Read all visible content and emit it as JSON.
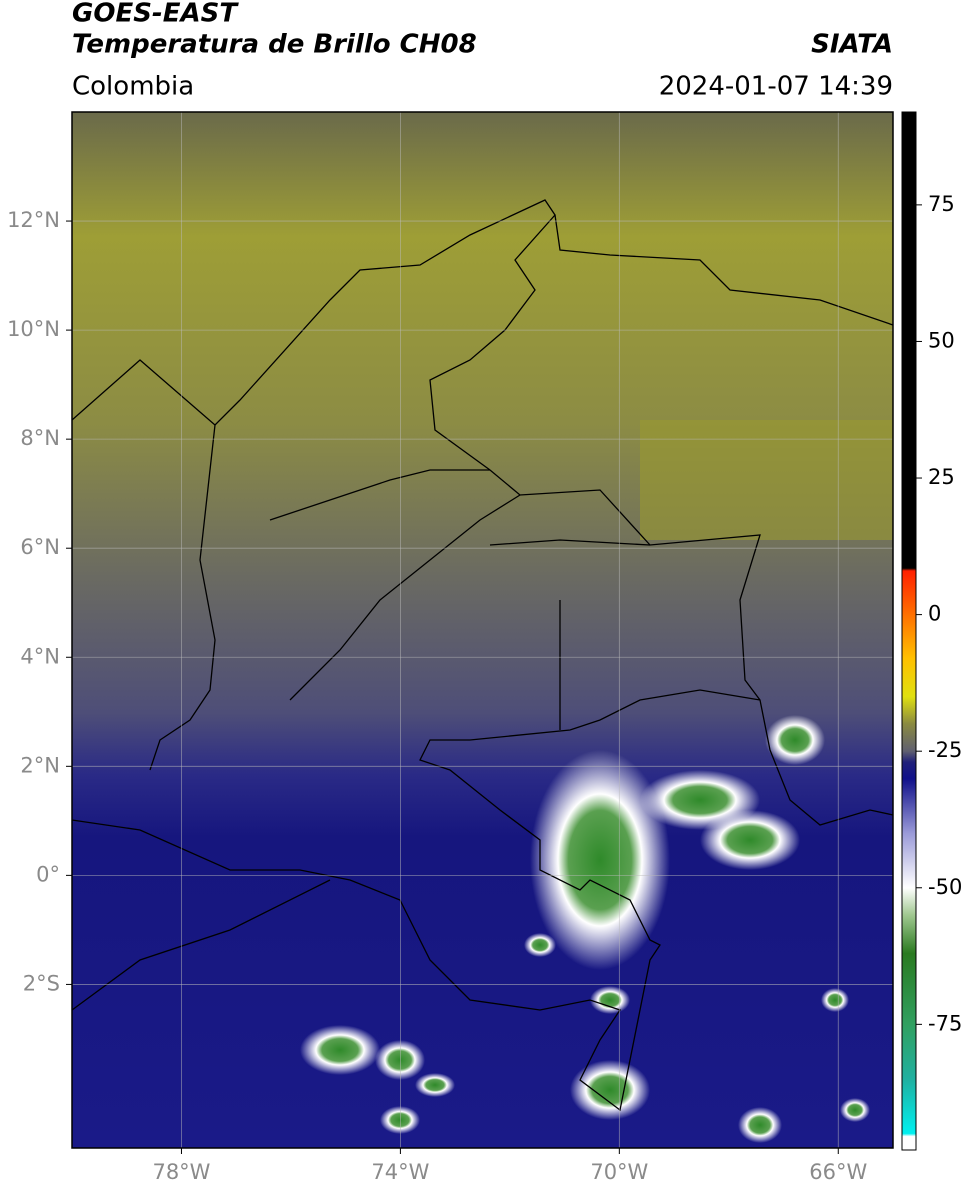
{
  "header": {
    "title": "GOES-EAST",
    "subtitle": "Temperatura de Brillo CH08",
    "brand": "SIATA",
    "region": "Colombia",
    "timestamp": "2024-01-07 14:39"
  },
  "map": {
    "xlim": [
      -80,
      -65
    ],
    "ylim": [
      -5,
      14
    ],
    "xticks": [
      {
        "value": -78,
        "label": "78°W"
      },
      {
        "value": -74,
        "label": "74°W"
      },
      {
        "value": -70,
        "label": "70°W"
      },
      {
        "value": -66,
        "label": "66°W"
      }
    ],
    "yticks": [
      {
        "value": 12,
        "label": "12°N"
      },
      {
        "value": 10,
        "label": "10°N"
      },
      {
        "value": 8,
        "label": "8°N"
      },
      {
        "value": 6,
        "label": "6°N"
      },
      {
        "value": 4,
        "label": "4°N"
      },
      {
        "value": 2,
        "label": "2°N"
      },
      {
        "value": 0,
        "label": "0°"
      },
      {
        "value": -2,
        "label": "2°S"
      }
    ],
    "grid": true
  },
  "colorbar": {
    "lim": [
      -98,
      92
    ],
    "ticks": [
      75,
      50,
      25,
      0,
      -25,
      -50,
      -75
    ],
    "stops": [
      {
        "value": -98,
        "color": "#ffffff"
      },
      {
        "value": -95.5,
        "color": "#ffffff"
      },
      {
        "value": -95,
        "color": "#00f0f0"
      },
      {
        "value": -85,
        "color": "#20b0a0"
      },
      {
        "value": -75,
        "color": "#30a060"
      },
      {
        "value": -62,
        "color": "#2a7a20"
      },
      {
        "value": -55,
        "color": "#a0c890"
      },
      {
        "value": -50,
        "color": "#ffffff"
      },
      {
        "value": -40,
        "color": "#9a9ad8"
      },
      {
        "value": -30,
        "color": "#10108a"
      },
      {
        "value": -27,
        "color": "#20207a"
      },
      {
        "value": -25,
        "color": "#606070"
      },
      {
        "value": -20,
        "color": "#8a8a40"
      },
      {
        "value": -15,
        "color": "#e0e010"
      },
      {
        "value": -8,
        "color": "#ffc000"
      },
      {
        "value": 0,
        "color": "#ff7000"
      },
      {
        "value": 8,
        "color": "#ff2000"
      },
      {
        "value": 8.5,
        "color": "#000000"
      },
      {
        "value": 92,
        "color": "#000000"
      }
    ]
  }
}
